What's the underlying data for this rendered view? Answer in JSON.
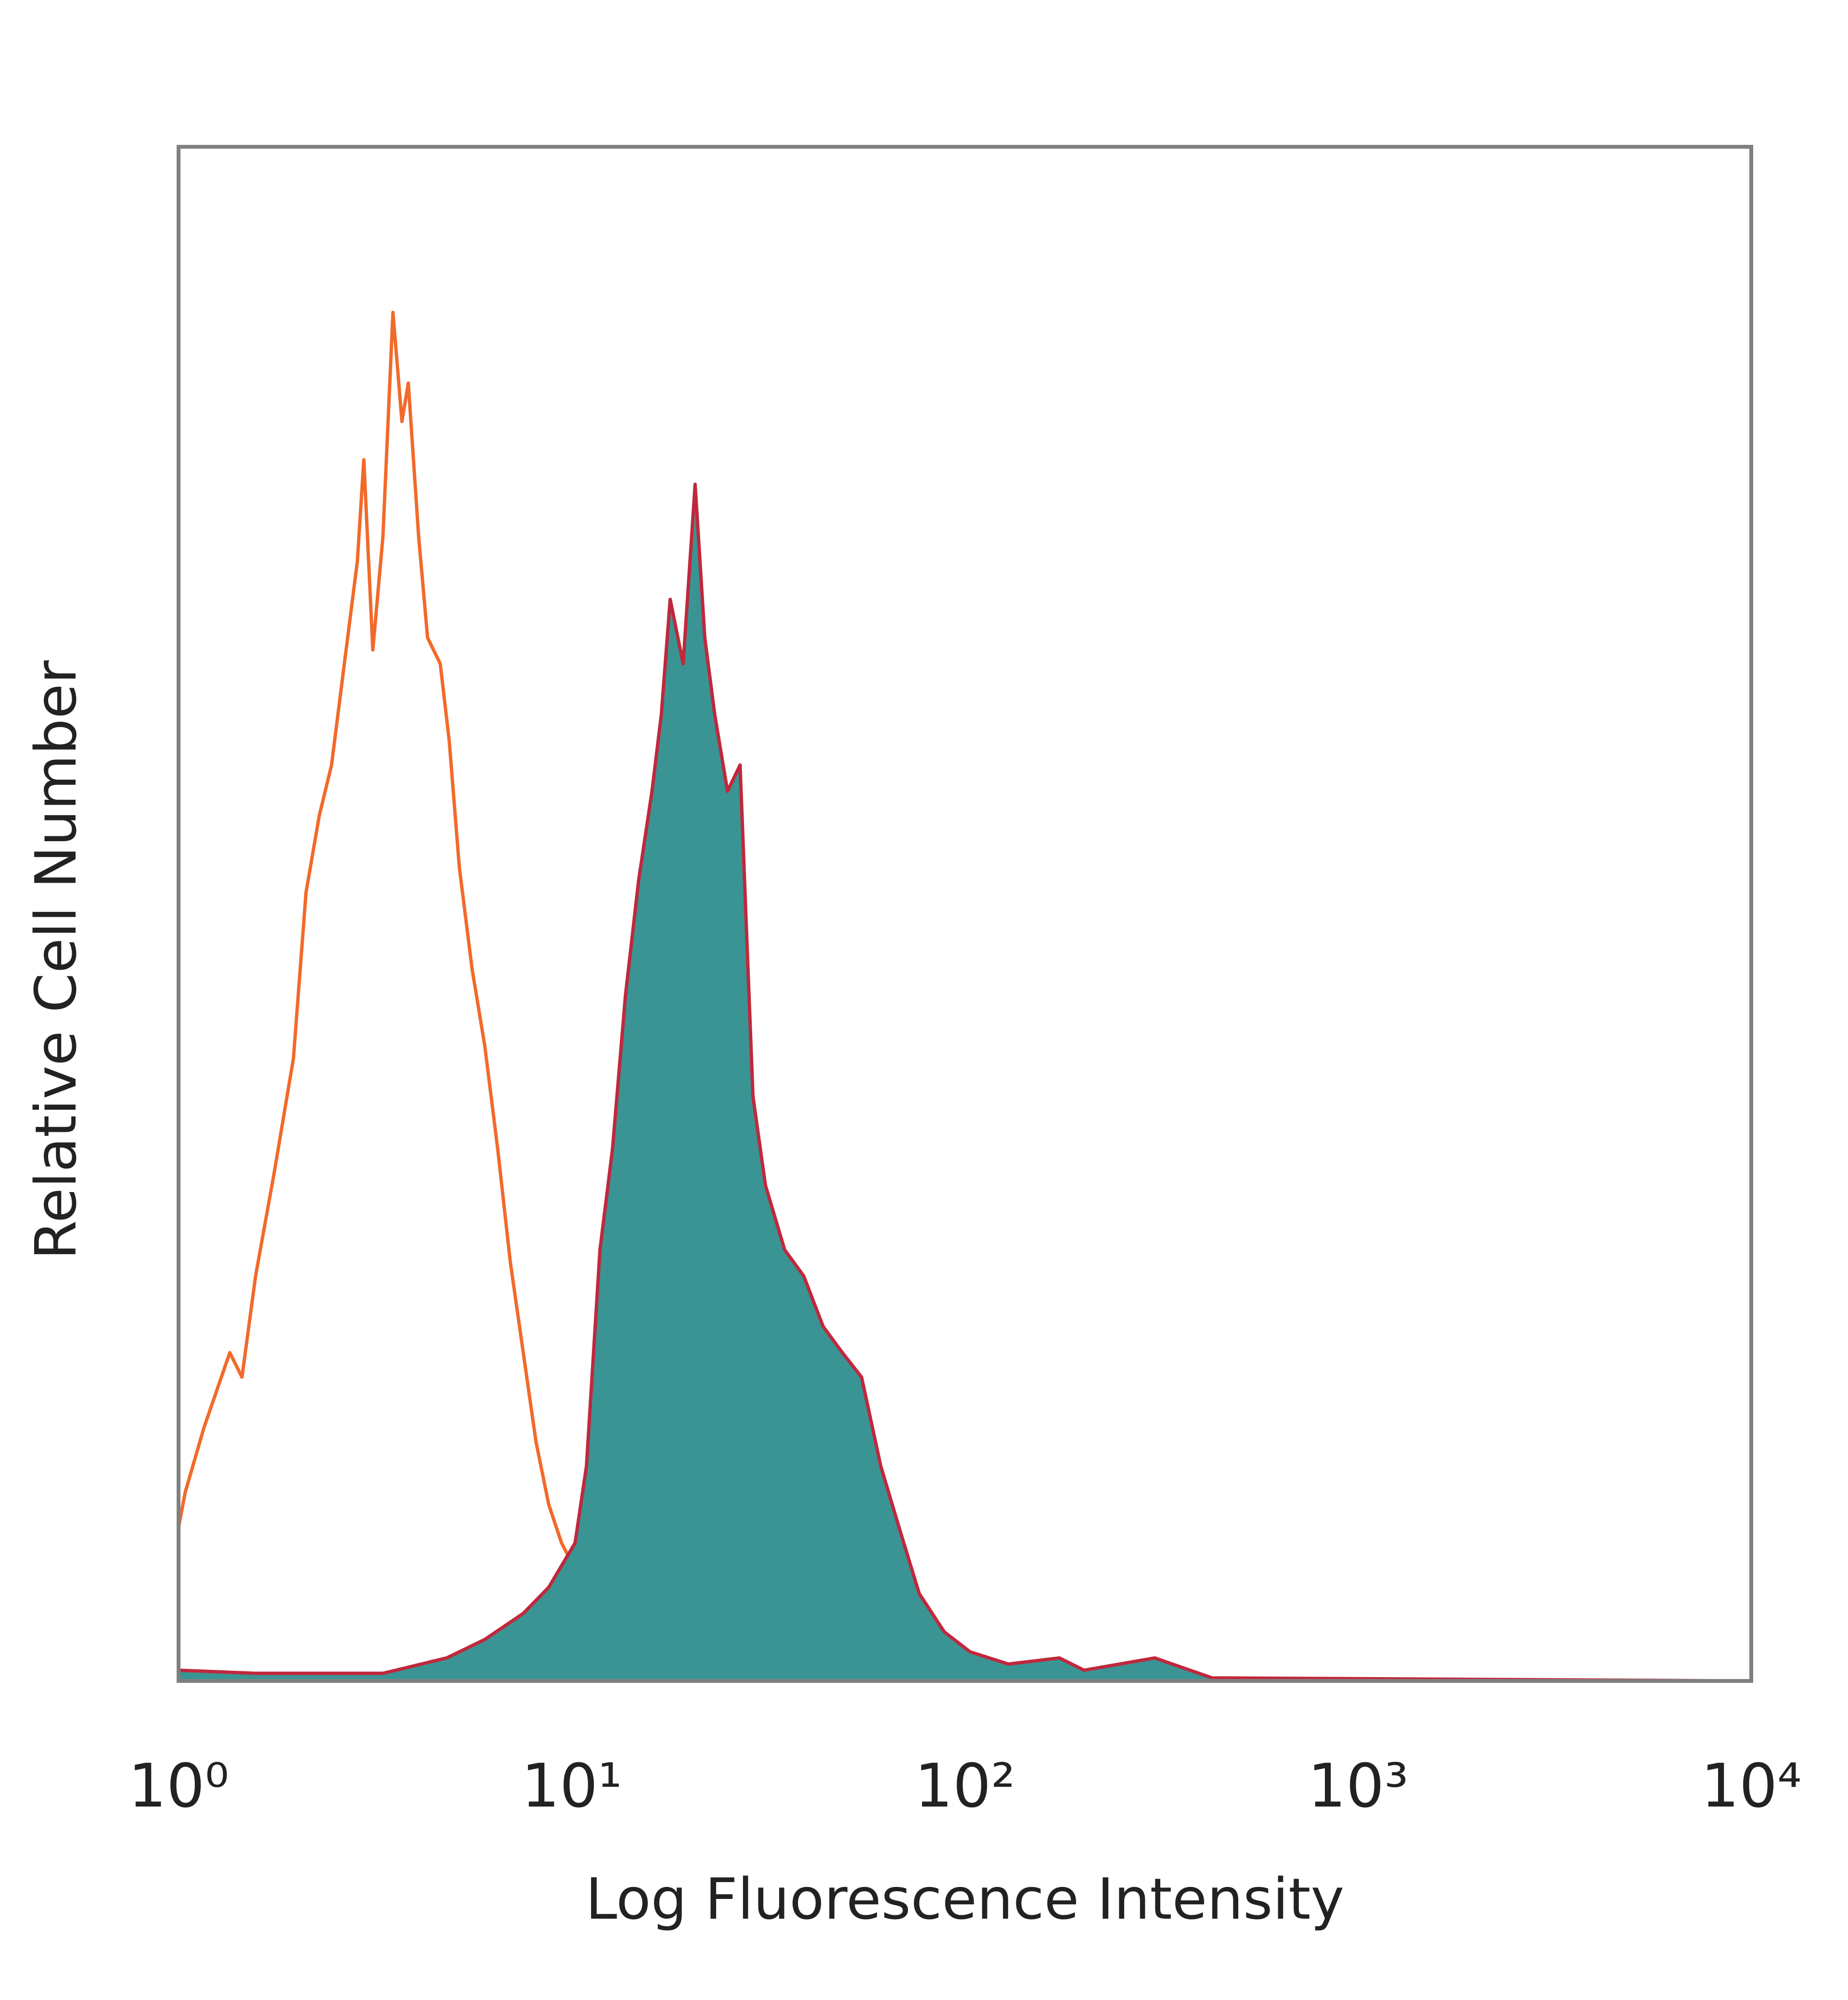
{
  "chart_data": {
    "type": "histogram-overlay",
    "xlabel": "Log Fluorescence Intensity",
    "ylabel": "Relative Cell Number",
    "xscale": "log",
    "xlim": [
      1,
      10000
    ],
    "ylim": [
      0,
      100
    ],
    "xticks": [
      {
        "value": 1,
        "label": "10⁰"
      },
      {
        "value": 10,
        "label": "10¹"
      },
      {
        "value": 100,
        "label": "10²"
      },
      {
        "value": 1000,
        "label": "10³"
      },
      {
        "value": 10000,
        "label": "10⁴"
      }
    ],
    "series": [
      {
        "color": "#f26a2a",
        "fill": false,
        "x": [
          1,
          1.04,
          1.16,
          1.35,
          1.45,
          1.57,
          1.75,
          1.96,
          2.11,
          2.28,
          2.45,
          2.64,
          2.85,
          2.96,
          3.12,
          3.31,
          3.51,
          3.7,
          3.84,
          4.08,
          4.3,
          4.63,
          4.88,
          5.18,
          5.58,
          6.01,
          6.48,
          6.98,
          7.53,
          8.11,
          8.74,
          9.42,
          10.2,
          11.4,
          12.7,
          13.7,
          14.8,
          17.1,
          23.1,
          36.2,
          65.8,
          139,
          294,
          10000
        ],
        "values": [
          10.0,
          12.3,
          16.5,
          21.4,
          19.8,
          26.4,
          33.1,
          40.6,
          51.4,
          56.4,
          59.7,
          66.3,
          73.0,
          79.6,
          67.2,
          74.6,
          89.2,
          82.1,
          84.6,
          74.6,
          68.0,
          66.3,
          61.3,
          53.0,
          46.4,
          41.4,
          34.7,
          27.3,
          21.4,
          15.6,
          11.5,
          9.0,
          7.3,
          5.7,
          4.0,
          1.5,
          0.7,
          0.5,
          0.2,
          0.2,
          0,
          0,
          0,
          0
        ]
      },
      {
        "color": "#c0283c",
        "fill_color": "#3a9494",
        "fill": true,
        "x": [
          1,
          1.57,
          3.31,
          4.81,
          6.01,
          7.53,
          8.74,
          10.2,
          10.9,
          11.8,
          12.7,
          13.7,
          14.8,
          16.0,
          16.9,
          17.8,
          19.2,
          20.6,
          21.8,
          23.1,
          24.9,
          26.8,
          28.9,
          31.1,
          34.8,
          38.9,
          43.6,
          48.8,
          54.6,
          61.1,
          68.4,
          76.5,
          88.6,
          103,
          129,
          174,
          201,
          304,
          425,
          10000
        ],
        "values": [
          0.7,
          0.5,
          0.5,
          1.5,
          2.7,
          4.4,
          6.1,
          9.0,
          14.0,
          28.1,
          34.7,
          44.7,
          52.2,
          58.0,
          63.0,
          70.5,
          66.3,
          78.0,
          68.0,
          63.0,
          58.0,
          59.7,
          38.1,
          32.3,
          28.1,
          26.4,
          23.1,
          21.4,
          19.8,
          14.0,
          9.8,
          5.7,
          3.2,
          1.9,
          1.1,
          1.5,
          0.7,
          1.5,
          0.2,
          0
        ]
      }
    ]
  }
}
